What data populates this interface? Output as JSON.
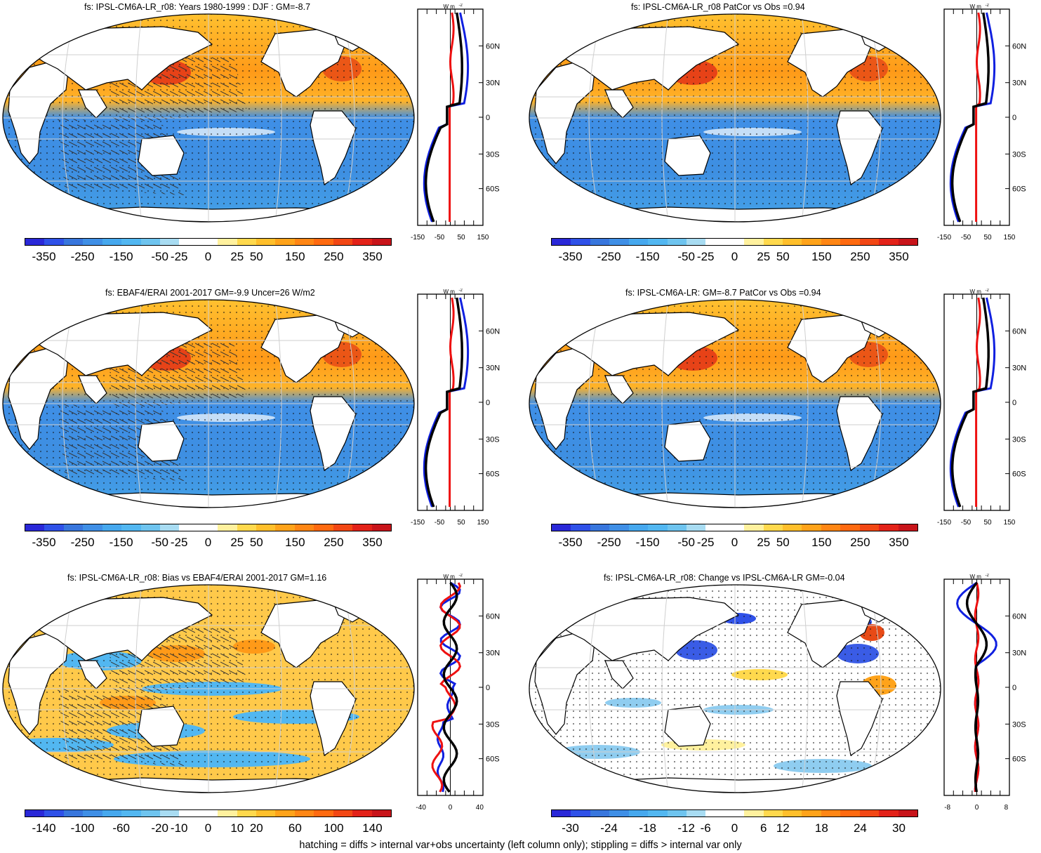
{
  "palette_main": [
    "#2a28d8",
    "#2f51e8",
    "#3876dd",
    "#3f8fe6",
    "#46a8ee",
    "#52b7f1",
    "#6ec4ef",
    "#a8dcf2",
    "#ffffff",
    "#ffffff",
    "#fff19e",
    "#ffd94d",
    "#ffbf2b",
    "#ffa31a",
    "#ff8614",
    "#ff6a10",
    "#f24714",
    "#e32219",
    "#c8141a"
  ],
  "panels": [
    {
      "id": "p1",
      "title": "fs: IPSL-CM6A-LR_r08: Years 1980-1999 : DJF : GM=-8.7",
      "colorbar_labels": [
        "-350",
        "-250",
        "-150",
        "-50",
        "-25",
        "0",
        "25",
        "50",
        "150",
        "250",
        "350"
      ],
      "profile_x_labels": [
        "-150",
        "-50",
        "50",
        "150"
      ],
      "profile_y_labels": [
        "60N",
        "30N",
        "0",
        "30S",
        "60S"
      ],
      "profile_units": "W m",
      "profile_units_sup": "-2",
      "has_hatching": true,
      "style": "mean"
    },
    {
      "id": "p2",
      "title": "fs: IPSL-CM6A-LR_r08 PatCor vs Obs =0.94",
      "colorbar_labels": [
        "-350",
        "-250",
        "-150",
        "-50",
        "-25",
        "0",
        "25",
        "50",
        "150",
        "250",
        "350"
      ],
      "profile_x_labels": [
        "-150",
        "-50",
        "50",
        "150"
      ],
      "profile_y_labels": [
        "60N",
        "30N",
        "0",
        "30S",
        "60S"
      ],
      "profile_units": "W m",
      "profile_units_sup": "-2",
      "has_hatching": false,
      "style": "mean"
    },
    {
      "id": "p3",
      "title": "fs: EBAF4/ERAI 2001-2017 GM=-9.9 Uncer=26 W/m2",
      "colorbar_labels": [
        "-350",
        "-250",
        "-150",
        "-50",
        "-25",
        "0",
        "25",
        "50",
        "150",
        "250",
        "350"
      ],
      "profile_x_labels": [
        "-150",
        "-50",
        "50",
        "150"
      ],
      "profile_y_labels": [
        "60N",
        "30N",
        "0",
        "30S",
        "60S"
      ],
      "profile_units": "W m",
      "profile_units_sup": "-2",
      "has_hatching": true,
      "style": "mean"
    },
    {
      "id": "p4",
      "title": "fs: IPSL-CM6A-LR: GM=-8.7 PatCor vs Obs =0.94",
      "colorbar_labels": [
        "-350",
        "-250",
        "-150",
        "-50",
        "-25",
        "0",
        "25",
        "50",
        "150",
        "250",
        "350"
      ],
      "profile_x_labels": [
        "-150",
        "-50",
        "50",
        "150"
      ],
      "profile_y_labels": [
        "60N",
        "30N",
        "0",
        "30S",
        "60S"
      ],
      "profile_units": "W m",
      "profile_units_sup": "-2",
      "has_hatching": false,
      "style": "mean"
    },
    {
      "id": "p5",
      "title": "fs: IPSL-CM6A-LR_r08: Bias vs EBAF4/ERAI 2001-2017 GM=1.16",
      "colorbar_labels": [
        "-140",
        "-100",
        "-60",
        "-20",
        "-10",
        "0",
        "10",
        "20",
        "60",
        "100",
        "140"
      ],
      "profile_x_labels": [
        "-40",
        "0",
        "40"
      ],
      "profile_y_labels": [
        "60N",
        "30N",
        "0",
        "30S",
        "60S"
      ],
      "profile_units": "W m",
      "profile_units_sup": "-2",
      "has_hatching": true,
      "style": "bias"
    },
    {
      "id": "p6",
      "title": "fs: IPSL-CM6A-LR_r08: Change vs IPSL-CM6A-LR GM=-0.04",
      "colorbar_labels": [
        "-30",
        "-24",
        "-18",
        "-12",
        "-6",
        "0",
        "6",
        "12",
        "18",
        "24",
        "30"
      ],
      "profile_x_labels": [
        "-8",
        "0",
        "8"
      ],
      "profile_y_labels": [
        "60N",
        "30N",
        "0",
        "30S",
        "60S"
      ],
      "profile_units": "W m",
      "profile_units_sup": "-2",
      "has_hatching": false,
      "style": "change"
    }
  ],
  "footer": "hatching = diffs > internal var+obs uncertainty (left column only); stippling = diffs > internal var only"
}
